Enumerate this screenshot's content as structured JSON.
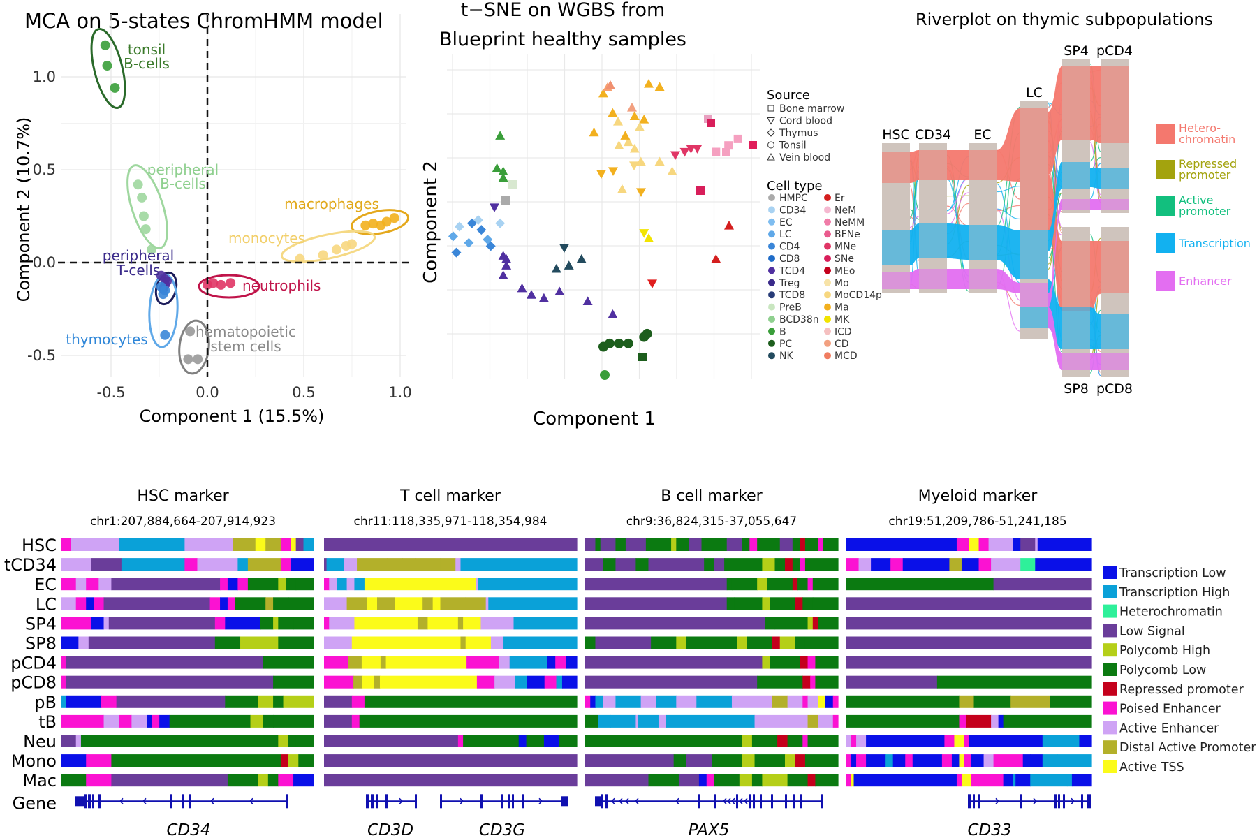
{
  "colors": {
    "Transcription Low": "#0a10e8",
    "Transcription High": "#0aa1d8",
    "Heterochromatin": "#2ef09a",
    "Low Signal": "#6a3d9a",
    "Polycomb High": "#b5cf18",
    "Polycomb Low": "#0b7a11",
    "Repressed promoter": "#c4001c",
    "Poised Enhancer": "#fb12d2",
    "Active Enhancer": "#cfa3f5",
    "Distal Active Promoter": "#b3b02a",
    "Active TSS": "#fbfb1a",
    "Heterochromatin_river": "#f4786e",
    "Repressed_river": "#a3a30e",
    "Active_river": "#12bf7e",
    "Transcription_river": "#12b1f0",
    "Enhancer_river": "#e36ef1"
  },
  "panel_a": {
    "title": "MCA on 5-states ChromHMM model",
    "xlabel": "Component 1 (15.5%)",
    "ylabel": "Component 2 (10.7%)",
    "xticks": [
      "-0.5",
      "0.0",
      "0.5",
      "1.0"
    ],
    "yticks": [
      "1.0",
      "0.5",
      "0.0",
      "-0.5"
    ],
    "labels": {
      "tonsil": "tonsil",
      "bcells": "B-cells",
      "peripheral_b1": "peripheral",
      "peripheral_b2": "B-cells",
      "macrophages": "macrophages",
      "monocytes": "monocytes",
      "peripheral_t1": "peripheral",
      "peripheral_t2": "T-cells",
      "neutrophils": "neutrophils",
      "thymocytes": "thymocytes",
      "hsc1": "hematopoietic",
      "hsc2": "stem cells"
    }
  },
  "panel_b": {
    "title1": "t−SNE on WGBS from",
    "title2": "Blueprint healthy samples",
    "xlabel": "Component 1",
    "ylabel": "Component 2",
    "source_title": "Source",
    "sources": [
      "Bone marrow",
      "Cord blood",
      "Thymus",
      "Tonsil",
      "Vein blood"
    ],
    "celltype_title": "Cell type",
    "celltypes_col1": [
      "HMPC",
      "CD34",
      "EC",
      "LC",
      "CD4",
      "CD8",
      "TCD4",
      "Treg",
      "TCD8",
      "PreB",
      "BCD38n",
      "B",
      "PC",
      "NK"
    ],
    "celltypes_col2": [
      "Er",
      "NeM",
      "NeMM",
      "BFNe",
      "MNe",
      "SNe",
      "MEo",
      "Mo",
      "MoCD14p",
      "Ma",
      "MK",
      "ICD",
      "CD",
      "MCD"
    ]
  },
  "panel_c": {
    "title": "Riverplot on thymic subpopulations",
    "nodes_top": [
      "HSC",
      "CD34",
      "EC",
      "LC",
      "SP4",
      "pCD4"
    ],
    "nodes_bottom": [
      "SP8",
      "pCD8"
    ],
    "legend": [
      "Hetero-\nchromatin",
      "Repressed\npromoter",
      "Active\npromoter",
      "Transcription",
      "Enhancer"
    ],
    "legend_l1": [
      "Hetero-",
      "Repressed",
      "Active",
      "Transcription",
      "Enhancer"
    ],
    "legend_l2": [
      "chromatin",
      "promoter",
      "promoter",
      "",
      ""
    ]
  },
  "panel_d": {
    "row_labels": [
      "HSC",
      "tCD34",
      "EC",
      "LC",
      "SP4",
      "SP8",
      "pCD4",
      "pCD8",
      "pB",
      "tB",
      "Neu",
      "Mono",
      "Mac",
      "Gene"
    ],
    "tracks": [
      {
        "title": "HSC marker",
        "coords": "chr1:207,884,664-207,914,923",
        "genes": [
          "CD34"
        ]
      },
      {
        "title": "T cell marker",
        "coords": "chr11:118,335,971-118,354,984",
        "genes": [
          "CD3D",
          "CD3G"
        ]
      },
      {
        "title": "B cell marker",
        "coords": "chr9:36,824,315-37,055,647",
        "genes": [
          "PAX5"
        ]
      },
      {
        "title": "Myeloid marker",
        "coords": "chr19:51,209,786-51,241,185",
        "genes": [
          "CD33"
        ]
      }
    ],
    "legend": [
      "Transcription Low",
      "Transcription High",
      "Heterochromatin",
      "Low Signal",
      "Polycomb High",
      "Polycomb Low",
      "Repressed promoter",
      "Poised Enhancer",
      "Active Enhancer",
      "Distal Active Promoter",
      "Active TSS"
    ]
  },
  "chart_data": [
    {
      "type": "scatter",
      "title": "MCA on 5-states ChromHMM model",
      "xlabel": "Component 1 (15.5%)",
      "ylabel": "Component 2 (10.7%)",
      "xlim": [
        -0.62,
        1.05
      ],
      "ylim": [
        -0.6,
        1.2
      ],
      "series": [
        {
          "name": "tonsil B-cells",
          "color": "#3a9e3a",
          "x": [
            -0.53,
            -0.52,
            -0.48
          ],
          "y": [
            1.17,
            1.06,
            0.94
          ]
        },
        {
          "name": "peripheral B-cells",
          "color": "#9fd79f",
          "x": [
            -0.36,
            -0.34,
            -0.33,
            -0.32,
            -0.29
          ],
          "y": [
            0.42,
            0.35,
            0.25,
            0.18,
            0.07
          ]
        },
        {
          "name": "macrophages",
          "color": "#f2b01e",
          "x": [
            0.82,
            0.86,
            0.9,
            0.93,
            0.97
          ],
          "y": [
            0.2,
            0.21,
            0.2,
            0.22,
            0.24
          ]
        },
        {
          "name": "monocytes",
          "color": "#f7d77f",
          "x": [
            0.48,
            0.6,
            0.67,
            0.72,
            0.75
          ],
          "y": [
            0.02,
            0.04,
            0.07,
            0.09,
            0.1
          ]
        },
        {
          "name": "peripheral T-cells",
          "color": "#5030a0",
          "x": [
            -0.24,
            -0.22,
            -0.21,
            -0.22,
            -0.23
          ],
          "y": [
            -0.07,
            -0.09,
            -0.1,
            -0.12,
            -0.14
          ]
        },
        {
          "name": "neutrophils",
          "color": "#e03565",
          "x": [
            0.0,
            0.03,
            0.07,
            0.12
          ],
          "y": [
            -0.12,
            -0.11,
            -0.12,
            -0.11
          ]
        },
        {
          "name": "thymocytes",
          "color": "#3a86d8",
          "x": [
            -0.24,
            -0.22,
            -0.23,
            -0.22
          ],
          "y": [
            -0.13,
            -0.15,
            -0.17,
            -0.39
          ]
        },
        {
          "name": "hematopoietic stem cells",
          "color": "#999999",
          "x": [
            -0.09,
            -0.1,
            -0.05
          ],
          "y": [
            -0.37,
            -0.52,
            -0.52
          ]
        }
      ]
    },
    {
      "type": "scatter",
      "title": "t−SNE on WGBS from Blueprint healthy samples",
      "xlabel": "Component 1",
      "ylabel": "Component 2",
      "xlim": [
        0,
        1
      ],
      "ylim": [
        0,
        1
      ],
      "series": [
        {
          "name": "CD34",
          "color": "#a8d2f2",
          "shape": "diamond",
          "x": [
            0.04,
            0.1,
            0.17
          ],
          "y": [
            0.47,
            0.49,
            0.48
          ]
        },
        {
          "name": "EC",
          "color": "#5fa8e8",
          "shape": "diamond",
          "x": [
            0.02,
            0.07,
            0.13
          ],
          "y": [
            0.44,
            0.42,
            0.43
          ]
        },
        {
          "name": "LC",
          "color": "#3a86d8",
          "shape": "diamond",
          "x": [
            0.03,
            0.08,
            0.11,
            0.14
          ],
          "y": [
            0.39,
            0.48,
            0.46,
            0.41
          ]
        },
        {
          "name": "B",
          "color": "#3a9e3a",
          "shape": "triangle-up",
          "x": [
            0.17,
            0.16,
            0.18,
            0.18
          ],
          "y": [
            0.75,
            0.65,
            0.64,
            0.62
          ]
        },
        {
          "name": "PC",
          "color": "#1d5e1d",
          "shape": "circle",
          "x": [
            0.5,
            0.52,
            0.55,
            0.58,
            0.63,
            0.64
          ],
          "y": [
            0.1,
            0.11,
            0.11,
            0.11,
            0.13,
            0.14
          ]
        },
        {
          "name": "TCD4",
          "color": "#5030a0",
          "shape": "triangle-up",
          "x": [
            0.18,
            0.19,
            0.19,
            0.18,
            0.24,
            0.27,
            0.31,
            0.36,
            0.45,
            0.53
          ],
          "y": [
            0.38,
            0.37,
            0.35,
            0.32,
            0.28,
            0.26,
            0.25,
            0.27,
            0.24,
            0.2
          ]
        },
        {
          "name": "NK",
          "color": "#234b5e",
          "shape": "triangle-up",
          "x": [
            0.35,
            0.39,
            0.43
          ],
          "y": [
            0.34,
            0.35,
            0.37
          ]
        },
        {
          "name": "Mo",
          "color": "#f7d77f",
          "shape": "triangle-up",
          "x": [
            0.55,
            0.58,
            0.6,
            0.62,
            0.68,
            0.72
          ],
          "y": [
            0.72,
            0.73,
            0.71,
            0.67,
            0.67,
            0.64
          ]
        },
        {
          "name": "Ma",
          "color": "#f2b01e",
          "shape": "triangle-up",
          "x": [
            0.47,
            0.5,
            0.53,
            0.57,
            0.6,
            0.63,
            0.68
          ],
          "y": [
            0.76,
            0.88,
            0.82,
            0.75,
            0.81,
            0.8,
            0.9
          ]
        },
        {
          "name": "NeM",
          "color": "#e03565",
          "shape": "triangle-down",
          "x": [
            0.73,
            0.76,
            0.78,
            0.8
          ],
          "y": [
            0.69,
            0.7,
            0.71,
            0.71
          ]
        },
        {
          "name": "ICD",
          "color": "#f5a0c0",
          "shape": "square",
          "x": [
            0.86,
            0.9,
            0.93
          ],
          "y": [
            0.7,
            0.72,
            0.74
          ]
        },
        {
          "name": "MK",
          "color": "#f2e400",
          "shape": "triangle-down",
          "x": [
            0.63
          ],
          "y": [
            0.45
          ]
        },
        {
          "name": "Er",
          "color": "#d41e1e",
          "shape": "triangle-up",
          "x": [
            0.86
          ],
          "y": [
            0.37
          ]
        }
      ]
    }
  ]
}
